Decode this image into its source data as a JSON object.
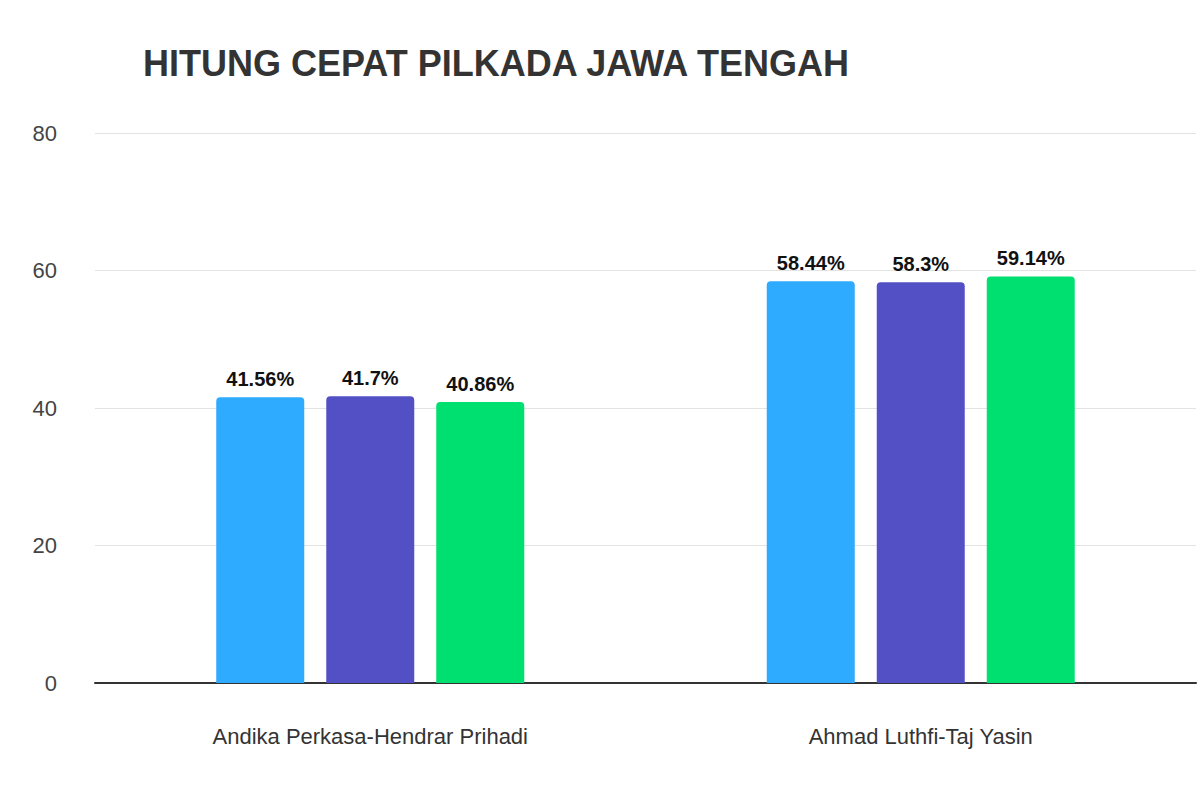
{
  "chart_data": {
    "type": "bar",
    "title": "HITUNG CEPAT PILKADA JAWA TENGAH",
    "categories": [
      "Andika Perkasa-Hendrar Prihadi",
      "Ahmad Luthfi-Taj Yasin"
    ],
    "series": [
      {
        "color": "#2eaaff",
        "values": [
          41.56,
          58.44
        ],
        "value_labels": [
          "41.56%",
          "58.44%"
        ]
      },
      {
        "color": "#5350c6",
        "values": [
          41.7,
          58.3
        ],
        "value_labels": [
          "41.7%",
          "58.3%"
        ]
      },
      {
        "color": "#00e070",
        "values": [
          40.86,
          59.14
        ],
        "value_labels": [
          "40.86%",
          "59.14%"
        ]
      }
    ],
    "ylim": [
      0,
      80
    ],
    "yticks": [
      0,
      20,
      40,
      60,
      80
    ],
    "grid": true,
    "data_labels": true
  }
}
